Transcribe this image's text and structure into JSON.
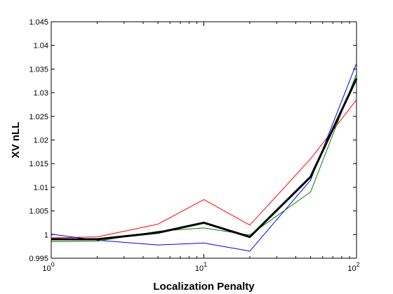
{
  "chart_data": {
    "type": "line",
    "title": "",
    "xlabel": "Localization Penalty",
    "ylabel": "XV nLL",
    "xscale": "log",
    "xlim": [
      1,
      100
    ],
    "ylim": [
      0.995,
      1.045
    ],
    "grid": false,
    "legend": "none",
    "y_ticks": [
      "0.995",
      "1",
      "1.005",
      "1.01",
      "1.015",
      "1.02",
      "1.025",
      "1.03",
      "1.035",
      "1.04",
      "1.045"
    ],
    "y_tick_values": [
      0.995,
      1.0,
      1.005,
      1.01,
      1.015,
      1.02,
      1.025,
      1.03,
      1.035,
      1.04,
      1.045
    ],
    "x_ticks": [
      {
        "value": 1,
        "base": "10",
        "exp": "0"
      },
      {
        "value": 10,
        "base": "10",
        "exp": "1"
      },
      {
        "value": 100,
        "base": "10",
        "exp": "2"
      }
    ],
    "x": [
      1,
      2,
      5,
      10,
      20,
      50,
      100
    ],
    "series": [
      {
        "color": "#ff0000",
        "width": 1,
        "values": [
          0.9993,
          0.9995,
          1.0022,
          1.0074,
          1.002,
          1.016,
          1.0285
        ]
      },
      {
        "color": "#0000ff",
        "width": 1,
        "values": [
          1.0001,
          0.9988,
          0.9978,
          0.9982,
          0.9965,
          1.0115,
          1.0362
        ]
      },
      {
        "color": "#008000",
        "width": 1,
        "values": [
          0.9985,
          0.9986,
          1.0007,
          1.0014,
          0.9999,
          1.009,
          1.034
        ]
      },
      {
        "color": "#000000",
        "width": 3,
        "values": [
          0.999,
          0.999,
          1.0004,
          1.0025,
          0.9995,
          1.0122,
          1.033
        ]
      }
    ]
  }
}
